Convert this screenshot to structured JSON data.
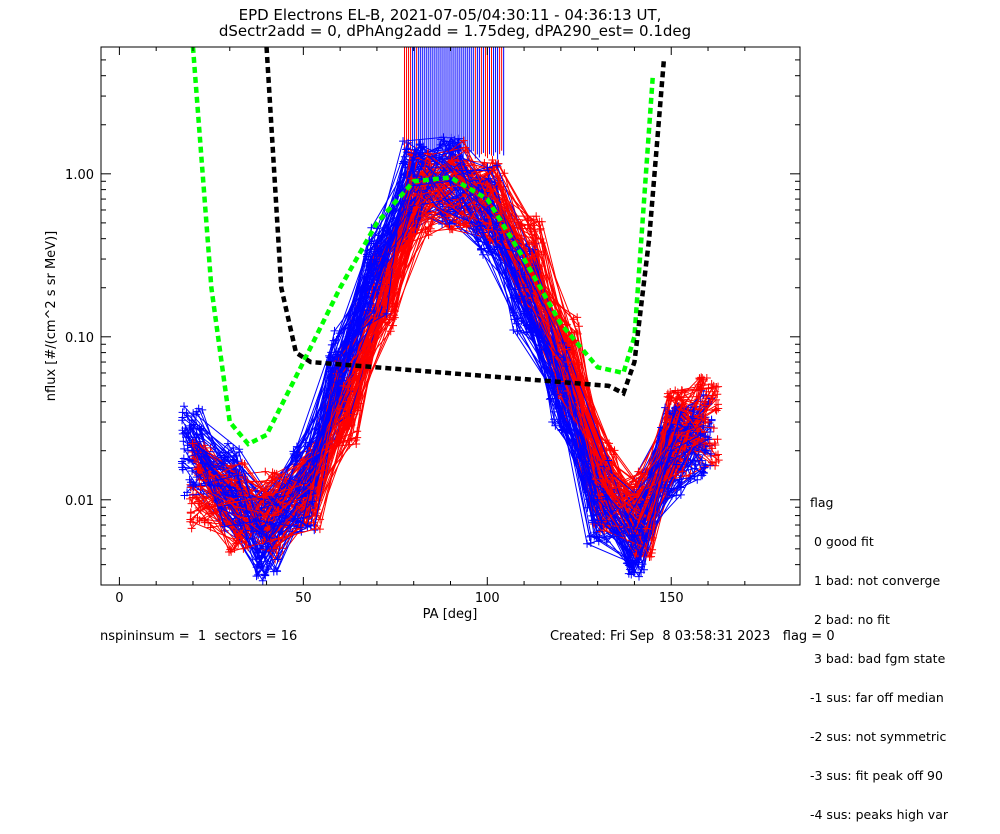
{
  "header": {
    "title_line1": "EPD Electrons EL-B, 2021-07-05/04:30:11 - 04:36:13 UT,",
    "title_line2": "dSectr2add = 0, dPhAng2add = 1.75deg, dPA290_est=   0.1deg"
  },
  "footer": {
    "left": "nspininsum =  1  sectors = 16",
    "right": "Created: Fri Sep  8 03:58:31 2023   flag = 0"
  },
  "legend": {
    "heading": "flag",
    "items": [
      " 0 good fit",
      " 1 bad: not converge",
      " 2 bad: no fit",
      " 3 bad: bad fgm state",
      "-1 sus: far off median",
      "-2 sus: not symmetric",
      "-3 sus: fit peak off 90",
      "-4 sus: peaks high var"
    ]
  },
  "colors": {
    "red_series": "#ff0000",
    "blue_series": "#0000ff",
    "green_fit": "#00ff00",
    "black_fit": "#000000"
  },
  "chart_data": {
    "type": "line",
    "xlabel": "PA [deg]",
    "ylabel": "nflux [#/(cm^2 s sr MeV)]",
    "xlim": [
      -5,
      185
    ],
    "ylim": [
      0.003,
      6
    ],
    "yscale": "log",
    "xticks": [
      0,
      50,
      100,
      150
    ],
    "xtick_labels": [
      "0",
      "50",
      "100",
      "150"
    ],
    "yticks": [
      0.01,
      0.1,
      1.0
    ],
    "ytick_labels": [
      "0.01",
      "0.10",
      "1.00"
    ],
    "series": [
      {
        "color": "red",
        "x": [
          22,
          32,
          42,
          52,
          62,
          72,
          82,
          92,
          102,
          112,
          122,
          132,
          142,
          152,
          160
        ],
        "y": [
          0.012,
          0.009,
          0.008,
          0.012,
          0.04,
          0.2,
          0.75,
          0.85,
          0.7,
          0.3,
          0.07,
          0.012,
          0.008,
          0.025,
          0.03
        ]
      },
      {
        "color": "blue",
        "x": [
          20,
          30,
          40,
          50,
          60,
          70,
          80,
          90,
          100,
          110,
          120,
          130,
          140,
          150,
          158
        ],
        "y": [
          0.02,
          0.012,
          0.006,
          0.012,
          0.06,
          0.25,
          0.85,
          0.9,
          0.6,
          0.2,
          0.05,
          0.01,
          0.006,
          0.02,
          0.025
        ]
      },
      {
        "color": "green",
        "x": [
          20,
          25,
          30,
          35,
          40,
          50,
          60,
          70,
          80,
          90,
          100,
          110,
          120,
          130,
          137,
          140,
          145
        ],
        "y": [
          6,
          0.2,
          0.03,
          0.022,
          0.025,
          0.07,
          0.2,
          0.5,
          0.9,
          0.95,
          0.7,
          0.3,
          0.12,
          0.065,
          0.06,
          0.1,
          4
        ]
      },
      {
        "color": "black",
        "x": [
          40,
          44,
          48,
          52,
          133,
          137,
          140,
          144,
          148
        ],
        "y": [
          6,
          0.2,
          0.08,
          0.07,
          0.05,
          0.045,
          0.07,
          0.4,
          5
        ]
      }
    ]
  }
}
